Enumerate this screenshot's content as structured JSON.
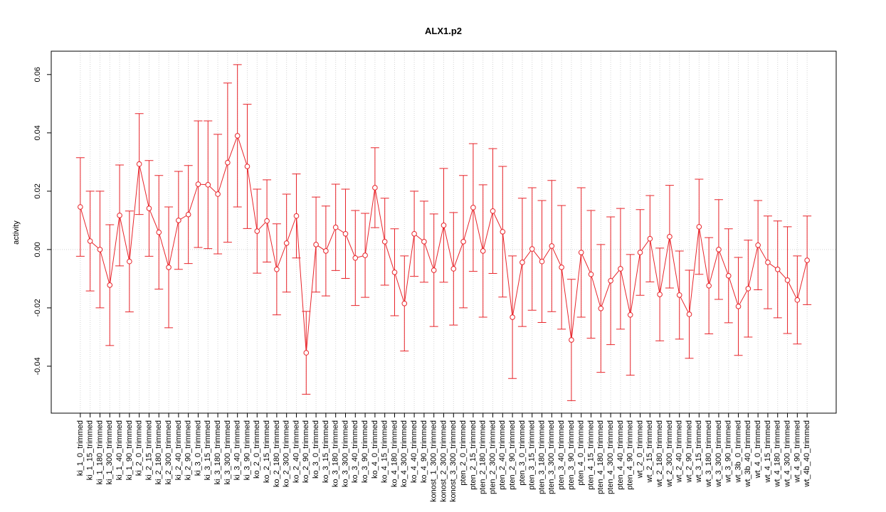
{
  "chart_data": {
    "type": "line",
    "title": "ALX1.p2",
    "y_label": "activity",
    "categories": [
      "ki_1_0_trimmed",
      "ki_1_15_trimmed",
      "ki_1_180_trimmed",
      "ki_1_300_trimmed",
      "ki_1_40_trimmed",
      "ki_1_90_trimmed",
      "ki_2_0_trimmed",
      "ki_2_15_trimmed",
      "ki_2_180_trimmed",
      "ki_2_300_trimmed",
      "ki_2_40_trimmed",
      "ki_2_90_trimmed",
      "ki_3_0_trimmed",
      "ki_3_15_trimmed",
      "ki_3_180_trimmed",
      "ki_3_300_trimmed",
      "ki_3_40_trimmed",
      "ki_3_90_trimmed",
      "ko_2_0_trimmed",
      "ko_2_15_trimmed",
      "ko_2_180_trimmed",
      "ko_2_300_trimmed",
      "ko_2_40_trimmed",
      "ko_2_90_trimmed",
      "ko_3_0_trimmed",
      "ko_3_15_trimmed",
      "ko_3_180_trimmed",
      "ko_3_300_trimmed",
      "ko_3_40_trimmed",
      "ko_3_90_trimmed",
      "ko_4_0_trimmed",
      "ko_4_15_trimmed",
      "ko_4_180_trimmed",
      "ko_4_300_trimmed",
      "ko_4_40_trimmed",
      "ko_4_90_trimmed",
      "konost_1_300_trimmed",
      "konost_2_300_trimmed",
      "konost_3_300_trimmed",
      "pten_2_0_trimmed",
      "pten_2_15_trimmed",
      "pten_2_180_trimmed",
      "pten_2_300_trimmed",
      "pten_2_40_trimmed",
      "pten_2_90_trimmed",
      "pten_3_0_trimmed",
      "pten_3_15_trimmed",
      "pten_3_180_trimmed",
      "pten_3_300_trimmed",
      "pten_3_40_trimmed",
      "pten_3_90_trimmed",
      "pten_4_0_trimmed",
      "pten_4_15_trimmed",
      "pten_4_180_trimmed",
      "pten_4_300_trimmed",
      "pten_4_40_trimmed",
      "pten_4_90_trimmed",
      "wt_2_0_trimmed",
      "wt_2_15_trimmed",
      "wt_2_180_trimmed",
      "wt_2_300_trimmed",
      "wt_2_40_trimmed",
      "wt_2_90_trimmed",
      "wt_3_15_trimmed",
      "wt_3_180_trimmed",
      "wt_3_300_trimmed",
      "wt_3_90_trimmed",
      "wt_3b_0_trimmed",
      "wt_3b_40_trimmed",
      "wt_4_0_trimmed",
      "wt_4_15_trimmed",
      "wt_4_180_trimmed",
      "wt_4_300_trimmed",
      "wt_4_90_trimmed",
      "wt_4b_40_trimmed"
    ],
    "values": [
      0.0146,
      0.0029,
      0.0,
      -0.0122,
      0.0117,
      -0.0041,
      0.0293,
      0.0141,
      0.0059,
      -0.0061,
      0.01,
      0.012,
      0.0224,
      0.0222,
      0.019,
      0.0298,
      0.039,
      0.0285,
      0.0063,
      0.0098,
      -0.0068,
      0.0022,
      0.0115,
      -0.0354,
      0.0017,
      -0.0005,
      0.0076,
      0.0054,
      -0.0029,
      -0.002,
      0.0212,
      0.0027,
      -0.0078,
      -0.0185,
      0.0054,
      0.0027,
      -0.0071,
      0.0083,
      -0.0066,
      0.0027,
      0.0144,
      -0.0005,
      0.0132,
      0.0061,
      -0.0232,
      -0.0044,
      0.0002,
      -0.0041,
      0.0012,
      -0.0061,
      -0.031,
      -0.001,
      -0.0085,
      -0.0202,
      -0.0107,
      -0.0066,
      -0.0224,
      -0.001,
      0.0037,
      -0.0154,
      0.0044,
      -0.0156,
      -0.0222,
      0.0078,
      -0.0124,
      0.0,
      -0.009,
      -0.0195,
      -0.0134,
      0.0015,
      -0.0044,
      -0.0068,
      -0.0105,
      -0.0173,
      -0.0037
    ],
    "errors": [
      0.0169,
      0.0171,
      0.02,
      0.0207,
      0.0173,
      0.0173,
      0.0173,
      0.0164,
      0.0195,
      0.0207,
      0.0168,
      0.0168,
      0.0217,
      0.0219,
      0.0205,
      0.0273,
      0.0244,
      0.0213,
      0.0144,
      0.0141,
      0.0156,
      0.0168,
      0.0144,
      0.0142,
      0.0163,
      0.0154,
      0.0148,
      0.0153,
      0.0163,
      0.0144,
      0.0137,
      0.0149,
      0.0149,
      0.0163,
      0.0146,
      0.0139,
      0.0193,
      0.0195,
      0.0193,
      0.0227,
      0.0219,
      0.0227,
      0.0214,
      0.0224,
      0.021,
      0.022,
      0.021,
      0.0209,
      0.0225,
      0.0212,
      0.0208,
      0.0222,
      0.0219,
      0.0219,
      0.0219,
      0.0207,
      0.0207,
      0.0147,
      0.0148,
      0.0159,
      0.0176,
      0.0151,
      0.0151,
      0.0163,
      0.0165,
      0.0171,
      0.0161,
      0.0168,
      0.0166,
      0.0153,
      0.0159,
      0.0166,
      0.0183,
      0.0151,
      0.0152
    ],
    "color": "#e8242a",
    "ylim": [
      -0.0561,
      0.068
    ],
    "yticks": [
      -0.04,
      -0.02,
      {
        "value": 0,
        "label": "0.00"
      },
      0.02,
      0.04,
      0.06
    ],
    "hline": 0,
    "grid": true
  }
}
